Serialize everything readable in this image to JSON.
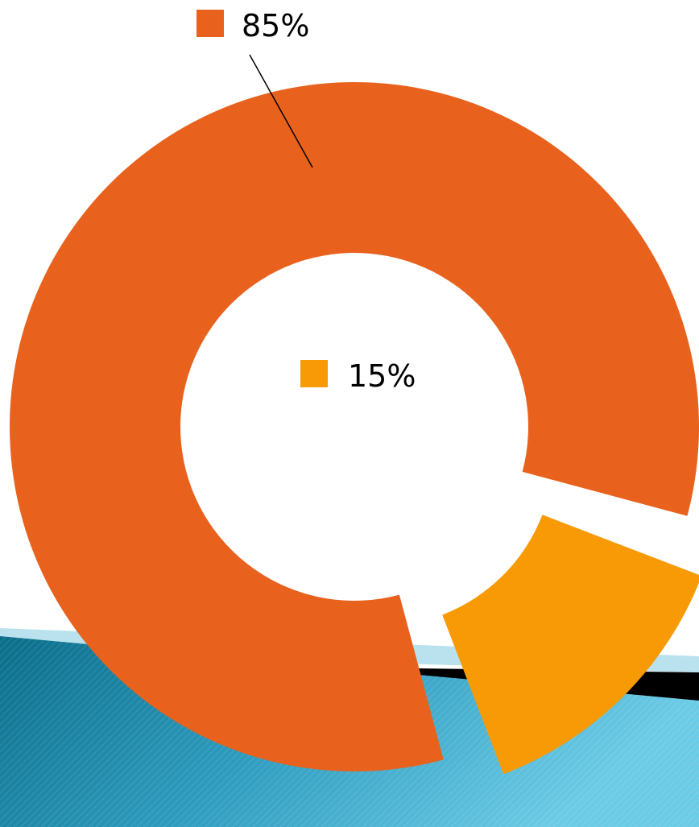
{
  "chart_data": {
    "type": "pie",
    "style": "donut",
    "slices": [
      {
        "label": "85%",
        "value": 85,
        "color": "#E8621E",
        "exploded": false
      },
      {
        "label": "15%",
        "value": 15,
        "color": "#F79A06",
        "exploded": true
      }
    ],
    "legend": {
      "entries": [
        {
          "text": "85%",
          "color": "#E8621E"
        },
        {
          "text": "15%",
          "color": "#F79A06"
        }
      ]
    },
    "title": "",
    "grid": false
  },
  "background": {
    "banner_colors": [
      "#0A6F8C",
      "#5BC3E0",
      "#000000"
    ]
  }
}
